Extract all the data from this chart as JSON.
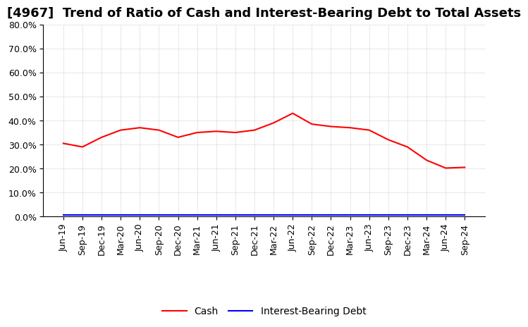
{
  "title": "[4967]  Trend of Ratio of Cash and Interest-Bearing Debt to Total Assets",
  "x_labels": [
    "Jun-19",
    "Sep-19",
    "Dec-19",
    "Mar-20",
    "Jun-20",
    "Sep-20",
    "Dec-20",
    "Mar-21",
    "Jun-21",
    "Sep-21",
    "Dec-21",
    "Mar-22",
    "Jun-22",
    "Sep-22",
    "Dec-22",
    "Mar-23",
    "Jun-23",
    "Sep-23",
    "Dec-23",
    "Mar-24",
    "Jun-24",
    "Sep-24"
  ],
  "cash": [
    0.305,
    0.29,
    0.33,
    0.36,
    0.37,
    0.36,
    0.33,
    0.35,
    0.355,
    0.35,
    0.36,
    0.39,
    0.43,
    0.385,
    0.375,
    0.37,
    0.36,
    0.32,
    0.29,
    0.235,
    0.202,
    0.205
  ],
  "interest_bearing_debt": [
    0.007,
    0.007,
    0.007,
    0.007,
    0.007,
    0.007,
    0.007,
    0.007,
    0.007,
    0.007,
    0.007,
    0.007,
    0.007,
    0.007,
    0.007,
    0.007,
    0.007,
    0.007,
    0.007,
    0.007,
    0.007,
    0.007
  ],
  "cash_color": "#FF0000",
  "debt_color": "#0000FF",
  "background_color": "#FFFFFF",
  "grid_color": "#AAAAAA",
  "ylim": [
    0.0,
    0.8
  ],
  "yticks": [
    0.0,
    0.1,
    0.2,
    0.3,
    0.4,
    0.5,
    0.6,
    0.7,
    0.8
  ],
  "legend_cash": "Cash",
  "legend_debt": "Interest-Bearing Debt",
  "title_fontsize": 13,
  "tick_fontsize": 9,
  "legend_fontsize": 10
}
